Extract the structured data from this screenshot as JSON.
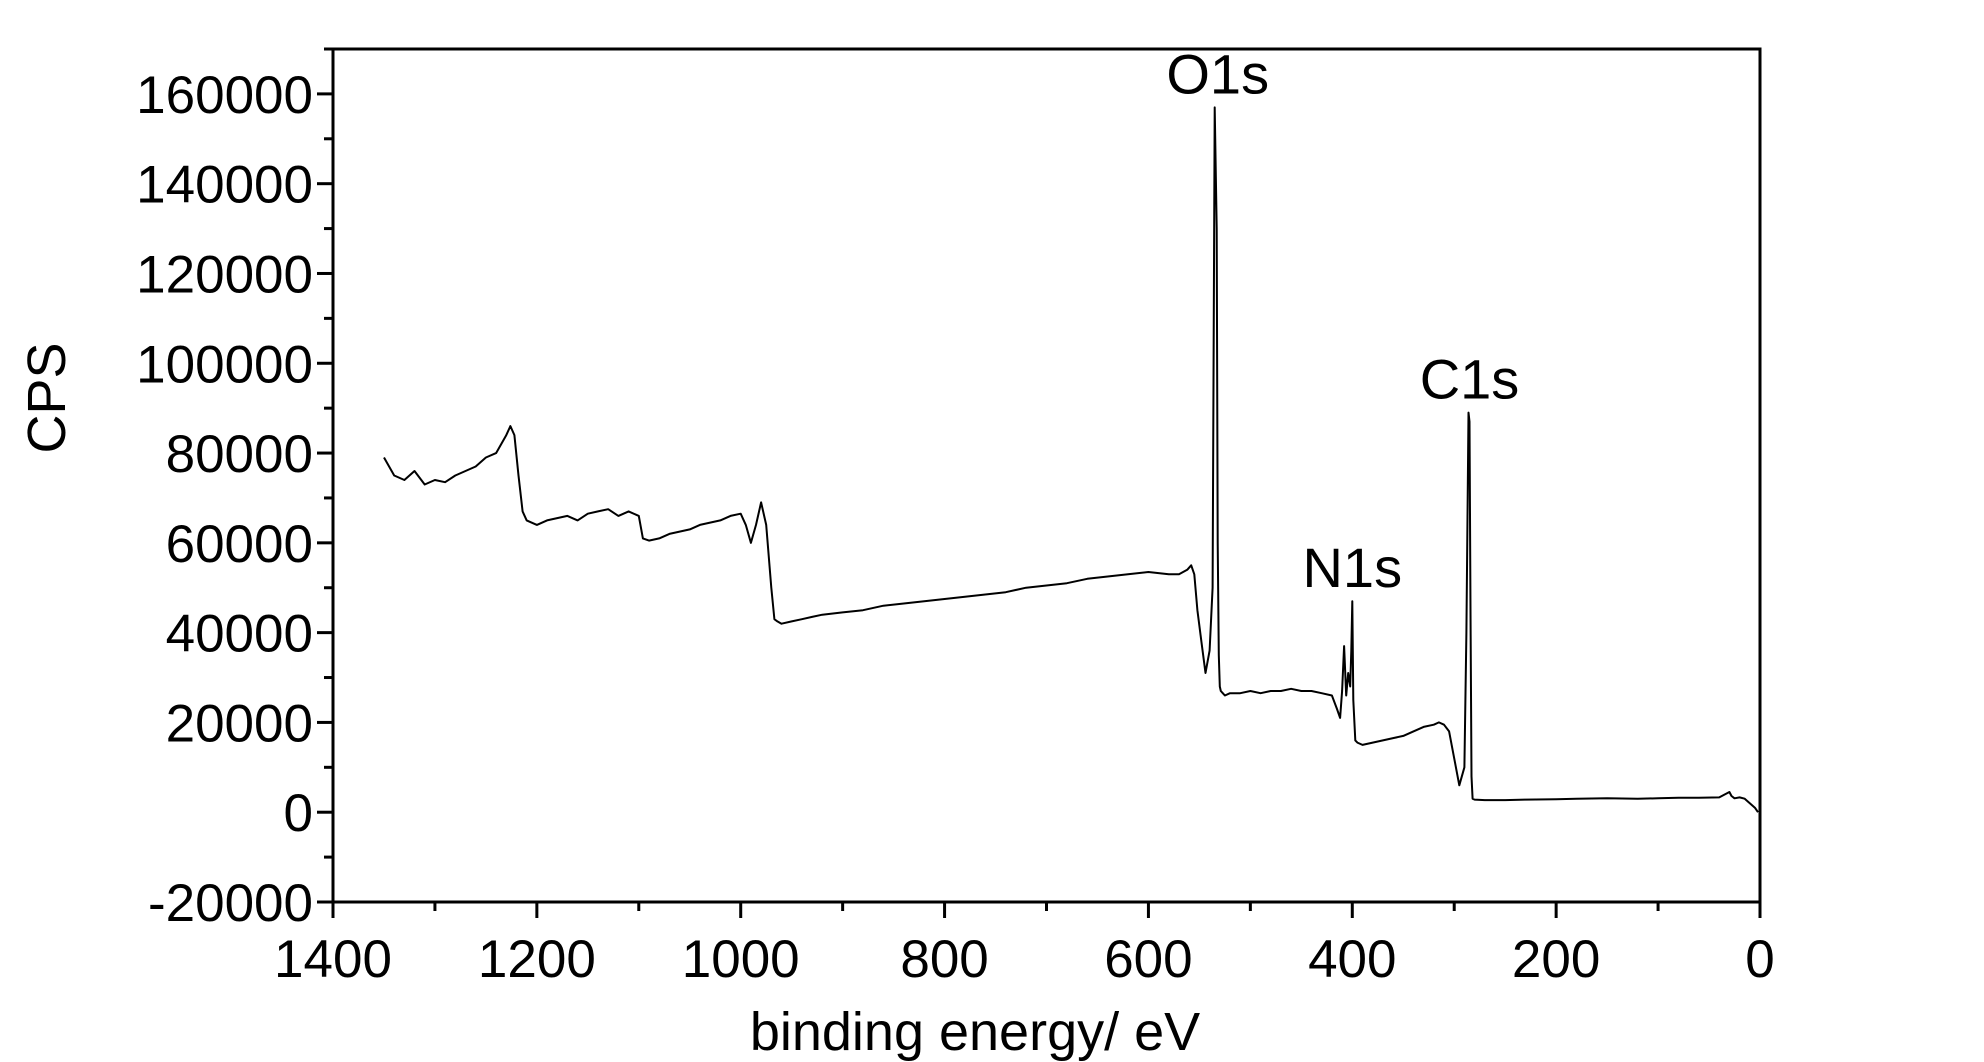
{
  "chart_data": {
    "type": "line",
    "xlabel": "binding energy/ eV",
    "ylabel": "CPS",
    "xlim": [
      1400,
      0
    ],
    "ylim": [
      -20000,
      170000
    ],
    "x_reversed": true,
    "x_ticks": [
      "1400",
      "1200",
      "1000",
      "800",
      "600",
      "400",
      "200",
      "0"
    ],
    "y_ticks": [
      "-20000",
      "0",
      "20000",
      "40000",
      "60000",
      "80000",
      "100000",
      "120000",
      "140000",
      "160000"
    ],
    "grid": false,
    "line_color": "#000000",
    "annotations": [
      {
        "text": "O1s",
        "x": 532,
        "y": 157000
      },
      {
        "text": "N1s",
        "x": 400,
        "y": 47000
      },
      {
        "text": "C1s",
        "x": 285,
        "y": 89000
      }
    ],
    "series": [
      {
        "x": [
          1350,
          1340,
          1330,
          1320,
          1310,
          1300,
          1290,
          1280,
          1270,
          1260,
          1250,
          1240,
          1235,
          1230,
          1226,
          1222,
          1218,
          1214,
          1210,
          1200,
          1190,
          1180,
          1170,
          1160,
          1150,
          1140,
          1130,
          1120,
          1110,
          1100,
          1096,
          1090,
          1080,
          1070,
          1060,
          1050,
          1040,
          1030,
          1020,
          1010,
          1000,
          995,
          990,
          985,
          980,
          975,
          970,
          967,
          964,
          960,
          950,
          940,
          930,
          920,
          900,
          880,
          860,
          840,
          820,
          800,
          780,
          760,
          740,
          720,
          700,
          680,
          660,
          640,
          620,
          600,
          580,
          570,
          562,
          558,
          555,
          552,
          548,
          544,
          540,
          537,
          535,
          533,
          532,
          531,
          530,
          529,
          527,
          525,
          520,
          510,
          500,
          490,
          480,
          470,
          460,
          450,
          440,
          430,
          420,
          415,
          412,
          410,
          408,
          406,
          404,
          402,
          401,
          400,
          399,
          397,
          395,
          390,
          380,
          370,
          360,
          350,
          340,
          330,
          320,
          315,
          310,
          305,
          300,
          295,
          290,
          288,
          286,
          285,
          284,
          283,
          282,
          280,
          270,
          250,
          230,
          200,
          180,
          150,
          120,
          100,
          80,
          60,
          40,
          30,
          28,
          25,
          20,
          15,
          10,
          5,
          2
        ],
        "y": [
          79000,
          75000,
          74000,
          76000,
          73000,
          74000,
          73500,
          75000,
          76000,
          77000,
          79000,
          80000,
          82000,
          84000,
          86000,
          84000,
          75000,
          67000,
          65000,
          64000,
          65000,
          65500,
          66000,
          65000,
          66500,
          67000,
          67500,
          66000,
          67000,
          66000,
          61000,
          60500,
          61000,
          62000,
          62500,
          63000,
          64000,
          64500,
          65000,
          66000,
          66500,
          64000,
          60000,
          64000,
          69000,
          64000,
          50000,
          43000,
          42500,
          42000,
          42500,
          43000,
          43500,
          44000,
          44500,
          45000,
          46000,
          46500,
          47000,
          47500,
          48000,
          48500,
          49000,
          50000,
          50500,
          51000,
          52000,
          52500,
          53000,
          53500,
          53000,
          53000,
          54000,
          55000,
          53000,
          45000,
          38000,
          31000,
          36000,
          50000,
          157000,
          130000,
          60000,
          35000,
          28000,
          27000,
          26500,
          26000,
          26500,
          26500,
          27000,
          26500,
          27000,
          27000,
          27500,
          27000,
          27000,
          26500,
          26000,
          23000,
          21000,
          27000,
          37000,
          26000,
          31000,
          28000,
          36000,
          47000,
          25000,
          16000,
          15500,
          15000,
          15500,
          16000,
          16500,
          17000,
          18000,
          19000,
          19500,
          20000,
          19500,
          18000,
          12000,
          6000,
          10000,
          40000,
          89000,
          87000,
          45000,
          8000,
          3000,
          2800,
          2700,
          2700,
          2800,
          2900,
          3000,
          3100,
          3000,
          3100,
          3200,
          3200,
          3300,
          4500,
          3600,
          3100,
          3300,
          3000,
          2000,
          1000,
          0
        ]
      }
    ]
  }
}
